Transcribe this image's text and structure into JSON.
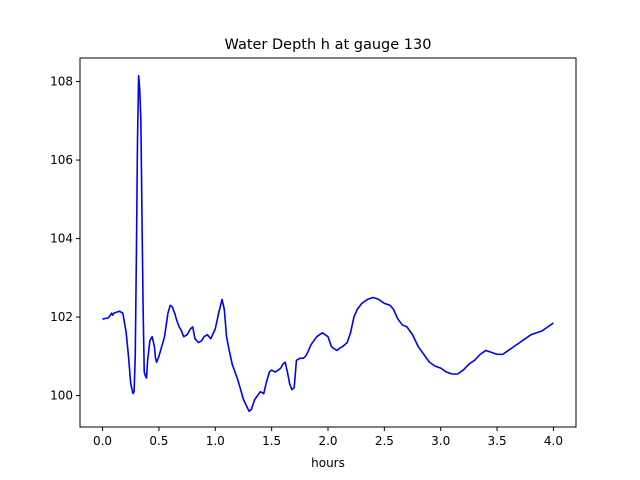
{
  "chart_data": {
    "type": "line",
    "title": "Water Depth h at gauge 130",
    "xlabel": "hours",
    "ylabel": "",
    "xlim": [
      -0.2,
      4.2
    ],
    "ylim": [
      99.2,
      108.6
    ],
    "xticks": [
      0.0,
      0.5,
      1.0,
      1.5,
      2.0,
      2.5,
      3.0,
      3.5,
      4.0
    ],
    "xtick_labels": [
      "0.0",
      "0.5",
      "1.0",
      "1.5",
      "2.0",
      "2.5",
      "3.0",
      "3.5",
      "4.0"
    ],
    "yticks": [
      100,
      102,
      104,
      106,
      108
    ],
    "ytick_labels": [
      "100",
      "102",
      "104",
      "106",
      "108"
    ],
    "grid": false,
    "series": [
      {
        "color": "#0000ff",
        "x": [
          0.0,
          0.05,
          0.07,
          0.08,
          0.09,
          0.1,
          0.12,
          0.15,
          0.18,
          0.21,
          0.23,
          0.25,
          0.27,
          0.28,
          0.29,
          0.3,
          0.31,
          0.32,
          0.33,
          0.34,
          0.35,
          0.36,
          0.37,
          0.38,
          0.39,
          0.4,
          0.42,
          0.44,
          0.46,
          0.47,
          0.48,
          0.5,
          0.52,
          0.55,
          0.58,
          0.6,
          0.62,
          0.64,
          0.66,
          0.68,
          0.7,
          0.72,
          0.75,
          0.78,
          0.8,
          0.82,
          0.85,
          0.88,
          0.9,
          0.93,
          0.96,
          1.0,
          1.03,
          1.06,
          1.08,
          1.1,
          1.12,
          1.15,
          1.2,
          1.25,
          1.3,
          1.32,
          1.35,
          1.4,
          1.43,
          1.45,
          1.48,
          1.5,
          1.53,
          1.56,
          1.58,
          1.6,
          1.62,
          1.64,
          1.66,
          1.68,
          1.7,
          1.72,
          1.75,
          1.78,
          1.8,
          1.82,
          1.85,
          1.9,
          1.95,
          2.0,
          2.03,
          2.05,
          2.08,
          2.1,
          2.13,
          2.17,
          2.2,
          2.23,
          2.26,
          2.3,
          2.35,
          2.4,
          2.45,
          2.5,
          2.55,
          2.58,
          2.62,
          2.66,
          2.7,
          2.75,
          2.8,
          2.85,
          2.9,
          2.95,
          3.0,
          3.05,
          3.1,
          3.15,
          3.2,
          3.25,
          3.3,
          3.35,
          3.4,
          3.45,
          3.5,
          3.55,
          3.6,
          3.65,
          3.7,
          3.75,
          3.8,
          3.85,
          3.9,
          3.95,
          4.0
        ],
        "y": [
          101.95,
          101.98,
          102.05,
          102.1,
          102.05,
          102.1,
          102.12,
          102.15,
          102.1,
          101.6,
          101.0,
          100.3,
          100.05,
          100.1,
          101.0,
          103.5,
          106.5,
          108.15,
          107.8,
          107.0,
          104.5,
          102.2,
          100.6,
          100.5,
          100.45,
          100.9,
          101.4,
          101.5,
          101.25,
          100.95,
          100.85,
          101.0,
          101.2,
          101.5,
          102.1,
          102.3,
          102.25,
          102.1,
          101.9,
          101.75,
          101.65,
          101.5,
          101.55,
          101.7,
          101.75,
          101.45,
          101.35,
          101.4,
          101.5,
          101.55,
          101.45,
          101.7,
          102.1,
          102.45,
          102.2,
          101.5,
          101.2,
          100.8,
          100.4,
          99.9,
          99.6,
          99.65,
          99.9,
          100.1,
          100.05,
          100.3,
          100.6,
          100.65,
          100.6,
          100.65,
          100.7,
          100.8,
          100.85,
          100.6,
          100.3,
          100.15,
          100.2,
          100.9,
          100.95,
          100.95,
          101.0,
          101.1,
          101.3,
          101.5,
          101.6,
          101.5,
          101.25,
          101.2,
          101.15,
          101.2,
          101.25,
          101.35,
          101.6,
          102.0,
          102.2,
          102.35,
          102.45,
          102.5,
          102.45,
          102.35,
          102.3,
          102.2,
          101.95,
          101.8,
          101.75,
          101.55,
          101.25,
          101.05,
          100.85,
          100.75,
          100.7,
          100.6,
          100.55,
          100.55,
          100.65,
          100.8,
          100.9,
          101.05,
          101.15,
          101.1,
          101.05,
          101.05,
          101.15,
          101.25,
          101.35,
          101.45,
          101.55,
          101.6,
          101.65,
          101.75,
          101.85
        ]
      }
    ]
  }
}
